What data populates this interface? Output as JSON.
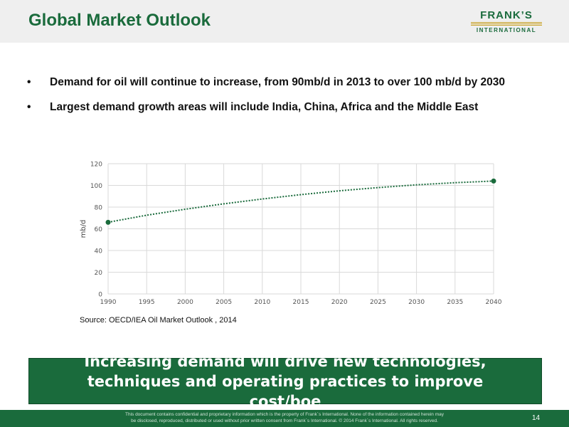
{
  "header": {
    "title": "Global Market Outlook",
    "logo_top": "FRANK’S",
    "logo_bottom": "INTERNATIONAL"
  },
  "bullets": [
    "Demand for oil will continue to increase, from 90mb/d in 2013 to over 100 mb/d by 2030",
    "Largest demand growth areas will include India, China, Africa and the Middle East"
  ],
  "bullet_symbol": "•",
  "chart_data": {
    "type": "line",
    "x": [
      1990,
      1995,
      2000,
      2005,
      2010,
      2015,
      2020,
      2025,
      2030,
      2035,
      2040
    ],
    "x_ticks": [
      "1990",
      "1995",
      "2000",
      "2005",
      "2010",
      "2015",
      "2020",
      "2025",
      "2030",
      "2035",
      "2040"
    ],
    "y_ticks": [
      "0",
      "20",
      "40",
      "60",
      "80",
      "100",
      "120"
    ],
    "series": [
      {
        "values": [
          66,
          72.5,
          78,
          83,
          87.5,
          91.5,
          95,
          98,
          100.5,
          102.5,
          104
        ],
        "color": "#1a6b3c",
        "style": "dotted",
        "endpoint_markers": true
      }
    ],
    "ylabel": "mb/d",
    "xlim": [
      1990,
      2040
    ],
    "ylim": [
      0,
      120
    ],
    "grid": true,
    "source": "Source: OECD/IEA Oil Market Outlook , 2014"
  },
  "callout": "Increasing demand will drive new technologies, techniques and operating practices to improve cost/boe",
  "footer": {
    "disclaimer_line1": "This document contains confidential and proprietary information which is the property of Frank´s International.  None of the information contained herein may",
    "disclaimer_line2": "be disclosed, reproduced, distributed or used without prior written consent from Frank´s International. © 2014 Frank´s International.    All rights reserved.",
    "page_number": "14"
  },
  "colors": {
    "brand_green": "#1a6b3c",
    "header_band": "#efefef",
    "logo_gold": "#c9a227",
    "grid": "#d9d9d9"
  }
}
